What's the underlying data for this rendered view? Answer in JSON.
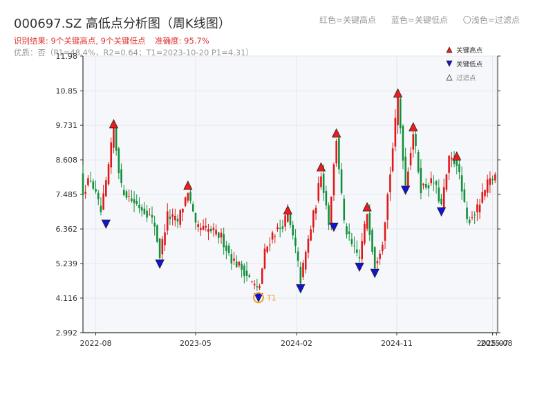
{
  "header": {
    "title": "000697.SZ 高低点分析图（周K线图）",
    "result_text": "识别结果: 9个关键高点, 9个关键低点",
    "accuracy_text": "准确度: 95.7%",
    "quality_text": "优质：否（P1=48.4%，R2=0.64；T1=2023-10-20 P1=4.31）",
    "legend_red": "红色=关键高点",
    "legend_blue": "蓝色=关键低点",
    "legend_light": "〇浅色=过滤点"
  },
  "colors": {
    "up": "#e01818",
    "down": "#10903a",
    "high_marker": "#ee1c1c",
    "low_marker": "#1212d8",
    "t1_circle": "#f0a030",
    "plot_bg": "#f5f7fa",
    "grid": "#e4e7ec",
    "axis": "#333333"
  },
  "chart_data": {
    "type": "candlestick",
    "ylim": [
      2.992,
      11.98
    ],
    "yticks": [
      "2.992",
      "4.116",
      "5.239",
      "6.362",
      "7.485",
      "8.608",
      "9.731",
      "10.85",
      "11.98"
    ],
    "xlim": [
      "2022-06-27",
      "2025-08-04"
    ],
    "xticks": [
      {
        "date": "2022-08-01",
        "label": "2022-08"
      },
      {
        "date": "2023-05-01",
        "label": "2023-05"
      },
      {
        "date": "2024-02-01",
        "label": "2024-02"
      },
      {
        "date": "2024-11-01",
        "label": "2024-11"
      },
      {
        "date": "2025-07-21",
        "label": "2025-07"
      },
      {
        "date": "2025-08-01",
        "label": "2025-08"
      }
    ],
    "legend": [
      {
        "label": "关键高点",
        "marker": "triangle-up",
        "color": "#ee1c1c"
      },
      {
        "label": "关键低点",
        "marker": "triangle-down",
        "color": "#1212d8"
      },
      {
        "label": "过滤点",
        "marker": "triangle-up-hollow",
        "color": "#888888"
      }
    ],
    "legend_position": "top-right",
    "anchors": [
      [
        "2022-06-27",
        7.6
      ],
      [
        "2022-07-18",
        8.0
      ],
      [
        "2022-08-15",
        6.9
      ],
      [
        "2022-08-29",
        7.8
      ],
      [
        "2022-09-19",
        9.6
      ],
      [
        "2022-10-10",
        7.7
      ],
      [
        "2022-11-07",
        7.3
      ],
      [
        "2022-12-19",
        6.9
      ],
      [
        "2023-01-09",
        6.5
      ],
      [
        "2023-01-23",
        5.5
      ],
      [
        "2023-02-13",
        6.8
      ],
      [
        "2023-03-13",
        6.6
      ],
      [
        "2023-04-10",
        7.6
      ],
      [
        "2023-05-01",
        6.4
      ],
      [
        "2023-06-12",
        6.3
      ],
      [
        "2023-07-10",
        6.1
      ],
      [
        "2023-08-07",
        5.4
      ],
      [
        "2023-09-11",
        5.0
      ],
      [
        "2023-10-20",
        4.31
      ],
      [
        "2023-11-06",
        5.6
      ],
      [
        "2023-11-27",
        6.2
      ],
      [
        "2023-12-18",
        6.4
      ],
      [
        "2024-01-08",
        6.8
      ],
      [
        "2024-01-29",
        5.7
      ],
      [
        "2024-02-12",
        4.7
      ],
      [
        "2024-03-04",
        6.0
      ],
      [
        "2024-03-25",
        7.2
      ],
      [
        "2024-04-08",
        8.2
      ],
      [
        "2024-04-29",
        6.6
      ],
      [
        "2024-05-20",
        9.3
      ],
      [
        "2024-06-10",
        6.5
      ],
      [
        "2024-07-01",
        5.8
      ],
      [
        "2024-07-22",
        5.4
      ],
      [
        "2024-08-12",
        6.9
      ],
      [
        "2024-09-02",
        5.2
      ],
      [
        "2024-09-23",
        6.0
      ],
      [
        "2024-10-14",
        8.2
      ],
      [
        "2024-11-04",
        10.6
      ],
      [
        "2024-11-25",
        7.8
      ],
      [
        "2024-12-16",
        9.5
      ],
      [
        "2025-01-06",
        7.7
      ],
      [
        "2025-02-10",
        7.9
      ],
      [
        "2025-03-03",
        7.1
      ],
      [
        "2025-03-24",
        8.6
      ],
      [
        "2025-04-14",
        8.55
      ],
      [
        "2025-05-12",
        6.6
      ],
      [
        "2025-06-09",
        7.0
      ],
      [
        "2025-07-07",
        7.8
      ],
      [
        "2025-07-28",
        8.1
      ]
    ],
    "key_highs": [
      {
        "date": "2022-09-19",
        "value": 9.6
      },
      {
        "date": "2023-04-10",
        "value": 7.6
      },
      {
        "date": "2024-01-08",
        "value": 6.8
      },
      {
        "date": "2024-04-08",
        "value": 8.2
      },
      {
        "date": "2024-05-20",
        "value": 9.3
      },
      {
        "date": "2024-08-12",
        "value": 6.9
      },
      {
        "date": "2024-11-04",
        "value": 10.6
      },
      {
        "date": "2024-12-16",
        "value": 9.5
      },
      {
        "date": "2025-04-14",
        "value": 8.55
      }
    ],
    "key_lows": [
      {
        "date": "2022-08-29",
        "value": 6.7
      },
      {
        "date": "2023-01-23",
        "value": 5.4
      },
      {
        "date": "2023-10-20",
        "value": 4.31
      },
      {
        "date": "2024-02-12",
        "value": 4.6
      },
      {
        "date": "2024-05-13",
        "value": 6.6
      },
      {
        "date": "2024-07-22",
        "value": 5.3
      },
      {
        "date": "2024-09-02",
        "value": 5.1
      },
      {
        "date": "2024-11-25",
        "value": 7.8
      },
      {
        "date": "2025-03-03",
        "value": 7.1
      }
    ],
    "t1_label": "T1",
    "t1_point": {
      "date": "2023-10-20",
      "value": 4.31
    }
  }
}
